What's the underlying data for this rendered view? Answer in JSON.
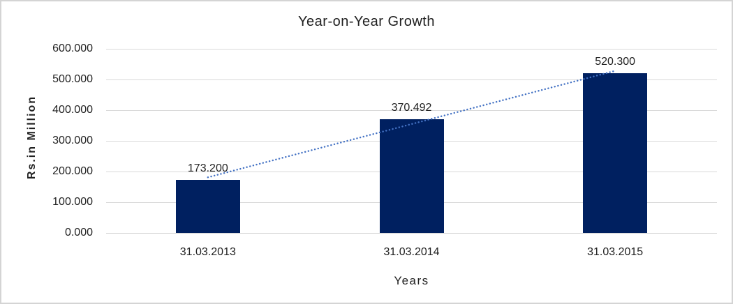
{
  "frame": {
    "background": "#ffffff",
    "border_color": "#d4d4d4"
  },
  "chart_data": {
    "type": "bar",
    "title": "Year-on-Year Growth",
    "xlabel": "Years",
    "ylabel": "Rs.in Million",
    "categories": [
      "31.03.2013",
      "31.03.2014",
      "31.03.2015"
    ],
    "values": [
      173.2,
      370.492,
      520.3
    ],
    "value_labels": [
      "173.200",
      "370.492",
      "520.300"
    ],
    "ylim": [
      0,
      600
    ],
    "ytick_step": 100,
    "ytick_labels": [
      "0.000",
      "100.000",
      "200.000",
      "300.000",
      "400.000",
      "500.000",
      "600.000"
    ],
    "grid": true,
    "legend": "none",
    "bar_color": "#002060",
    "gridline_color": "#d9d9d9",
    "trendline": {
      "type": "linear",
      "style": "dotted",
      "color": "#4472C4"
    }
  }
}
